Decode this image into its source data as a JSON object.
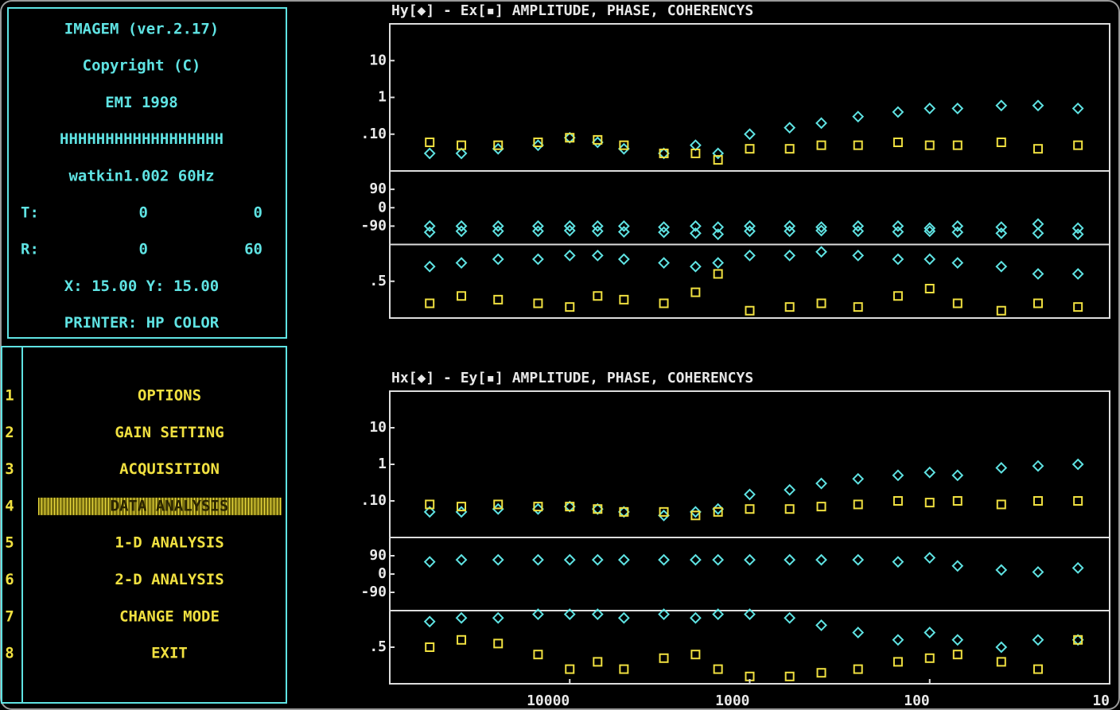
{
  "sidebar": {
    "lines": [
      "IMAGEM (ver.2.17)",
      "Copyright (C)",
      "EMI 1998",
      "HHHHHHHHHHHHHHHHHH",
      "watkin1.002 60Hz"
    ],
    "t_label": "T:",
    "t_values": [
      0,
      0
    ],
    "r_label": "R:",
    "r_values": [
      0,
      60
    ],
    "xy": "X: 15.00 Y: 15.00",
    "printer": "PRINTER: HP COLOR"
  },
  "menu": {
    "items": [
      {
        "key": "1",
        "label": "OPTIONS"
      },
      {
        "key": "2",
        "label": "GAIN SETTING"
      },
      {
        "key": "3",
        "label": "ACQUISITION"
      },
      {
        "key": "4",
        "label": "DATA ANALYSIS"
      },
      {
        "key": "5",
        "label": "1-D ANALYSIS"
      },
      {
        "key": "6",
        "label": "2-D ANALYSIS"
      },
      {
        "key": "7",
        "label": "CHANGE MODE"
      },
      {
        "key": "8",
        "label": "EXIT"
      }
    ],
    "selected": 3
  },
  "chart_data": [
    {
      "type": "scatter",
      "title": "Hy[◆] - Ex[▪] AMPLITUDE, PHASE, COHERENCYS",
      "xlim": [
        100000,
        10
      ],
      "log_x": true,
      "x": [
        60000,
        40000,
        25000,
        15000,
        10000,
        7000,
        5000,
        3000,
        2000,
        1500,
        1000,
        600,
        400,
        250,
        150,
        100,
        70,
        40,
        25,
        15
      ],
      "panels": [
        {
          "ylim": [
            0.01,
            100
          ],
          "log_y": true,
          "yticks": [
            10,
            1,
            {
              "value": 0.1,
              "label": ".10"
            }
          ],
          "series": [
            {
              "color": "#5fe3e3",
              "marker": "diamond",
              "values": [
                0.03,
                0.03,
                0.04,
                0.05,
                0.08,
                0.06,
                0.04,
                0.03,
                0.05,
                0.03,
                0.1,
                0.15,
                0.2,
                0.3,
                0.4,
                0.5,
                0.5,
                0.6,
                0.6,
                0.5
              ]
            },
            {
              "color": "#f0e040",
              "marker": "square",
              "values": [
                0.06,
                0.05,
                0.05,
                0.06,
                0.08,
                0.07,
                0.05,
                0.03,
                0.03,
                0.02,
                0.04,
                0.04,
                0.05,
                0.05,
                0.06,
                0.05,
                0.05,
                0.06,
                0.04,
                0.05
              ]
            }
          ]
        },
        {
          "ylim": [
            -180,
            180
          ],
          "log_y": false,
          "yticks": [
            90,
            0,
            -90
          ],
          "series": [
            {
              "color": "#5fe3e3",
              "marker": "diamond",
              "values": [
                -90,
                -90,
                -90,
                -90,
                -90,
                -90,
                -90,
                -95,
                -90,
                -95,
                -90,
                -90,
                -95,
                -90,
                -90,
                -100,
                -90,
                -95,
                -80,
                -100
              ]
            },
            {
              "color": "#5fe3e3",
              "marker": "diamond",
              "values": [
                -120,
                -115,
                -115,
                -115,
                -112,
                -115,
                -118,
                -120,
                -125,
                -130,
                -115,
                -115,
                -112,
                -115,
                -118,
                -115,
                -120,
                -125,
                -125,
                -130
              ]
            }
          ]
        },
        {
          "ylim": [
            0,
            1
          ],
          "log_y": false,
          "yticks": [
            {
              "value": 0.5,
              "label": ".5"
            }
          ],
          "series": [
            {
              "color": "#5fe3e3",
              "marker": "diamond",
              "values": [
                0.7,
                0.75,
                0.8,
                0.8,
                0.85,
                0.85,
                0.8,
                0.75,
                0.7,
                0.75,
                0.85,
                0.85,
                0.9,
                0.85,
                0.8,
                0.8,
                0.75,
                0.7,
                0.6,
                0.6
              ]
            },
            {
              "color": "#f0e040",
              "marker": "square",
              "values": [
                0.2,
                0.3,
                0.25,
                0.2,
                0.15,
                0.3,
                0.25,
                0.2,
                0.35,
                0.6,
                0.1,
                0.15,
                0.2,
                0.15,
                0.3,
                0.4,
                0.2,
                0.1,
                0.2,
                0.15
              ]
            }
          ]
        }
      ]
    },
    {
      "type": "scatter",
      "title": "Hx[◆] - Ey[▪] AMPLITUDE, PHASE, COHERENCYS",
      "xlim": [
        100000,
        10
      ],
      "log_x": true,
      "xticks": [
        10000,
        1000,
        100,
        10
      ],
      "x": [
        60000,
        40000,
        25000,
        15000,
        10000,
        7000,
        5000,
        3000,
        2000,
        1500,
        1000,
        600,
        400,
        250,
        150,
        100,
        70,
        40,
        25,
        15
      ],
      "panels": [
        {
          "ylim": [
            0.01,
            100
          ],
          "log_y": true,
          "yticks": [
            10,
            1,
            {
              "value": 0.1,
              "label": ".10"
            }
          ],
          "series": [
            {
              "color": "#5fe3e3",
              "marker": "diamond",
              "values": [
                0.05,
                0.05,
                0.06,
                0.06,
                0.07,
                0.06,
                0.05,
                0.04,
                0.05,
                0.06,
                0.15,
                0.2,
                0.3,
                0.4,
                0.5,
                0.6,
                0.5,
                0.8,
                0.9,
                1.0
              ]
            },
            {
              "color": "#f0e040",
              "marker": "square",
              "values": [
                0.08,
                0.07,
                0.08,
                0.07,
                0.07,
                0.06,
                0.05,
                0.05,
                0.04,
                0.05,
                0.06,
                0.06,
                0.07,
                0.08,
                0.1,
                0.09,
                0.1,
                0.08,
                0.1,
                0.1
              ]
            }
          ]
        },
        {
          "ylim": [
            -180,
            180
          ],
          "log_y": false,
          "yticks": [
            90,
            0,
            -90
          ],
          "series": [
            {
              "color": "#5fe3e3",
              "marker": "diamond",
              "values": [
                60,
                70,
                70,
                70,
                70,
                70,
                70,
                70,
                70,
                70,
                70,
                70,
                70,
                70,
                60,
                80,
                40,
                20,
                10,
                30
              ]
            }
          ]
        },
        {
          "ylim": [
            0,
            1
          ],
          "log_y": false,
          "yticks": [
            {
              "value": 0.5,
              "label": ".5"
            }
          ],
          "series": [
            {
              "color": "#5fe3e3",
              "marker": "diamond",
              "values": [
                0.85,
                0.9,
                0.9,
                0.95,
                0.95,
                0.95,
                0.9,
                0.95,
                0.9,
                0.95,
                0.95,
                0.9,
                0.8,
                0.7,
                0.6,
                0.7,
                0.6,
                0.5,
                0.6,
                0.6
              ]
            },
            {
              "color": "#f0e040",
              "marker": "square",
              "values": [
                0.5,
                0.6,
                0.55,
                0.4,
                0.2,
                0.3,
                0.2,
                0.35,
                0.4,
                0.2,
                0.1,
                0.1,
                0.15,
                0.2,
                0.3,
                0.35,
                0.4,
                0.3,
                0.2,
                0.6
              ]
            }
          ]
        }
      ]
    }
  ]
}
